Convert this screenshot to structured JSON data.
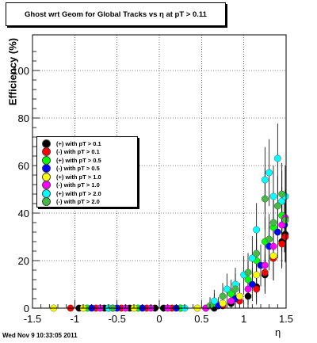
{
  "title": "Ghost wrt Geom for Global Tracks vs    η at pT > 0.11",
  "footer": "Wed Nov  9 10:33:05 2011",
  "chart_data": {
    "type": "scatter",
    "title": "Ghost wrt Geom for Global Tracks vs    η at pT > 0.11",
    "xlabel": "η",
    "ylabel": "Efficiency (%)",
    "xlim": [
      -1.5,
      1.5
    ],
    "ylim": [
      0,
      115
    ],
    "xticks": [
      -1.5,
      -1,
      -0.5,
      0,
      0.5,
      1,
      1.5
    ],
    "xtick_labels": [
      "-1.5",
      "-1",
      "-0.5",
      "0",
      "0.5",
      "1",
      "1.5"
    ],
    "yticks": [
      0,
      20,
      40,
      60,
      80,
      100
    ],
    "ytick_labels": [
      "0",
      "20",
      "40",
      "60",
      "80",
      "100"
    ],
    "grid": true,
    "legend_placement": "left-middle",
    "series": [
      {
        "name": "(+) with pT > 0.1",
        "color": "#000000",
        "x": [
          -0.95,
          -0.65,
          -0.35,
          -0.05,
          0.05,
          0.25,
          0.65,
          0.85,
          1.05,
          1.15,
          1.25,
          1.35,
          1.45,
          1.49
        ],
        "y": [
          0,
          0,
          0,
          0,
          0,
          0,
          0,
          2,
          5,
          9,
          14,
          21,
          28,
          31
        ]
      },
      {
        "name": "(-) with pT > 0.1",
        "color": "#ff0000",
        "x": [
          -1.05,
          -0.75,
          -0.45,
          -0.15,
          0.15,
          0.55,
          0.75,
          0.95,
          1.15,
          1.25,
          1.35,
          1.45,
          1.49
        ],
        "y": [
          0,
          0,
          0,
          0,
          0,
          0,
          1,
          3,
          8,
          15,
          21,
          27,
          30
        ]
      },
      {
        "name": "(+) with pT > 0.5",
        "color": "#00ff00",
        "x": [
          -0.85,
          -0.55,
          -0.25,
          0.25,
          0.65,
          0.85,
          1.05,
          1.15,
          1.25,
          1.35,
          1.45
        ],
        "y": [
          0,
          0,
          0,
          0,
          2,
          6,
          12,
          20,
          28,
          34,
          39
        ]
      },
      {
        "name": "(-) with pT > 0.5",
        "color": "#0000ff",
        "x": [
          -0.8,
          -0.5,
          -0.2,
          0.2,
          0.7,
          0.9,
          1.1,
          1.2,
          1.3,
          1.4,
          1.48
        ],
        "y": [
          0,
          0,
          0,
          0,
          1,
          4,
          10,
          18,
          26,
          32,
          35
        ]
      },
      {
        "name": "(+) with pT > 1.0",
        "color": "#ffff00",
        "x": [
          -1.25,
          -0.9,
          -0.6,
          -0.3,
          0.45,
          0.75,
          0.95,
          1.15,
          1.35
        ],
        "y": [
          0,
          0,
          0,
          0,
          0,
          2,
          5,
          14,
          22
        ]
      },
      {
        "name": "(-) with pT > 1.0",
        "color": "#ff00ff",
        "x": [
          -0.7,
          -0.4,
          -0.1,
          0.1,
          0.55,
          0.85,
          1.05,
          1.25,
          1.35,
          1.45,
          1.49
        ],
        "y": [
          0,
          0,
          0,
          0,
          0,
          3,
          8,
          18,
          26,
          35,
          38
        ]
      },
      {
        "name": "(+) with pT > 2.0",
        "color": "#00ffff",
        "x": [
          -0.6,
          0.3,
          0.65,
          0.8,
          0.9,
          1.0,
          1.1,
          1.15,
          1.25,
          1.3,
          1.35,
          1.4,
          1.45,
          1.49
        ],
        "y": [
          0,
          0,
          3,
          8,
          10,
          14,
          21,
          33,
          54,
          57,
          47,
          63,
          45,
          47
        ]
      },
      {
        "name": "(-) with pT > 2.0",
        "color": "#44bb44",
        "x": [
          -0.55,
          0.6,
          0.75,
          0.9,
          1.05,
          1.15,
          1.25,
          1.3,
          1.35,
          1.4,
          1.45,
          1.49
        ],
        "y": [
          0,
          1,
          5,
          8,
          15,
          23,
          46,
          29,
          36,
          43,
          48,
          37
        ]
      }
    ]
  }
}
